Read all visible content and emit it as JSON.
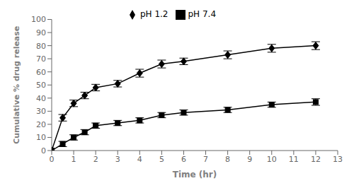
{
  "chart_data": {
    "type": "line",
    "xlabel": "Time (hr)",
    "ylabel": "Cumulative % drug release",
    "x": [
      0,
      0.5,
      1.0,
      1.5,
      2.0,
      3.0,
      4.0,
      5.0,
      6.0,
      8.0,
      10.0,
      12.0
    ],
    "series": [
      {
        "name": "pH 1.2",
        "color": "#000000",
        "marker": "diamond",
        "values": [
          0,
          25,
          36,
          42,
          48,
          51,
          59,
          66,
          68,
          73,
          78,
          80
        ],
        "errors": [
          0,
          2.5,
          2.5,
          2.5,
          2.5,
          2.5,
          3.0,
          3.0,
          2.5,
          3.0,
          3.0,
          3.0
        ]
      },
      {
        "name": "pH 7.4",
        "color": "#000000",
        "marker": "square",
        "values": [
          0,
          5,
          10,
          14,
          19,
          21,
          23,
          27,
          29,
          31,
          35,
          37
        ],
        "errors": [
          0,
          2.0,
          2.0,
          2.0,
          2.0,
          2.0,
          2.0,
          2.0,
          2.0,
          2.0,
          2.0,
          2.5
        ]
      }
    ],
    "xlim": [
      0,
      13
    ],
    "ylim": [
      0,
      100
    ],
    "xticks": [
      0,
      1,
      2,
      3,
      4,
      5,
      6,
      7,
      8,
      9,
      10,
      11,
      12,
      13
    ],
    "yticks": [
      0,
      10,
      20,
      30,
      40,
      50,
      60,
      70,
      80,
      90,
      100
    ],
    "legend": "upper center",
    "grid": false
  }
}
